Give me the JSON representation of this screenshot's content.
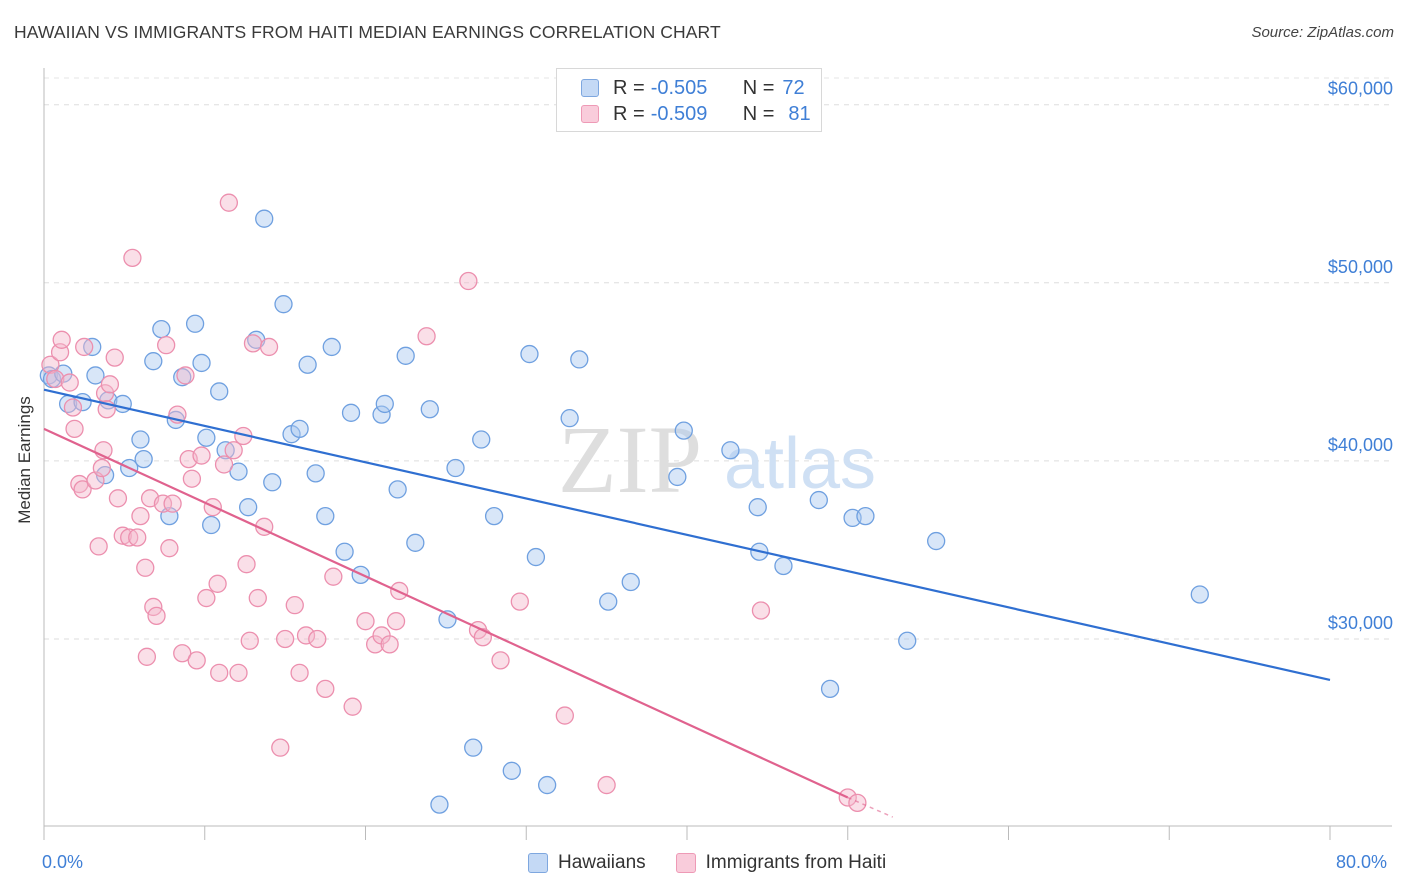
{
  "header": {
    "title": "HAWAIIAN VS IMMIGRANTS FROM HAITI MEDIAN EARNINGS CORRELATION CHART",
    "source": "Source: ZipAtlas.com"
  },
  "watermark": {
    "zip": "ZIP",
    "atlas": "atlas"
  },
  "legend": {
    "rows": [
      {
        "r_label": "R =",
        "r_value": "-0.505",
        "n_label": "N =",
        "n_value": "72",
        "color": "#a9c8f0"
      },
      {
        "r_label": "R =",
        "r_value": "-0.509",
        "n_label": "N =",
        "n_value": "81",
        "color": "#f5b8cb"
      }
    ]
  },
  "bottom_legend": {
    "items": [
      {
        "label": "Hawaiians",
        "color": "#a9c8f0"
      },
      {
        "label": "Immigrants from Haiti",
        "color": "#f5b8cb"
      }
    ]
  },
  "chart_data": {
    "type": "scatter",
    "title": "HAWAIIAN VS IMMIGRANTS FROM HAITI MEDIAN EARNINGS CORRELATION CHART",
    "xlabel": "",
    "ylabel": "Median Earnings",
    "xlim": [
      0,
      80
    ],
    "ylim": [
      19500,
      61500
    ],
    "x_tick_labels": [
      "0.0%",
      "80.0%"
    ],
    "y_ticks": [
      30000,
      40000,
      50000,
      60000
    ],
    "y_tick_labels": [
      "$30,000",
      "$40,000",
      "$50,000",
      "$60,000"
    ],
    "grid": true,
    "legend_position": "top-center",
    "series": [
      {
        "name": "Hawaiians",
        "color": "#6fa0e0",
        "fill": "#a9c8f0",
        "trend": {
          "x": [
            0,
            80
          ],
          "y": [
            44000,
            27700
          ],
          "color": "#2f6fd1"
        },
        "points": [
          [
            0.3,
            44800
          ],
          [
            0.5,
            44600
          ],
          [
            1.2,
            44900
          ],
          [
            1.5,
            43200
          ],
          [
            2.4,
            43300
          ],
          [
            3.0,
            46400
          ],
          [
            3.2,
            44800
          ],
          [
            3.8,
            39200
          ],
          [
            4.0,
            43400
          ],
          [
            4.9,
            43200
          ],
          [
            5.3,
            39600
          ],
          [
            6.0,
            41200
          ],
          [
            6.2,
            40100
          ],
          [
            6.8,
            45600
          ],
          [
            7.3,
            47400
          ],
          [
            7.8,
            36900
          ],
          [
            8.2,
            42300
          ],
          [
            8.6,
            44700
          ],
          [
            9.4,
            47700
          ],
          [
            9.8,
            45500
          ],
          [
            10.1,
            41300
          ],
          [
            10.4,
            36400
          ],
          [
            10.9,
            43900
          ],
          [
            11.3,
            40600
          ],
          [
            12.1,
            39400
          ],
          [
            12.7,
            37400
          ],
          [
            13.2,
            46800
          ],
          [
            13.7,
            53600
          ],
          [
            14.2,
            38800
          ],
          [
            14.9,
            48800
          ],
          [
            15.4,
            41500
          ],
          [
            15.9,
            41800
          ],
          [
            16.4,
            45400
          ],
          [
            16.9,
            39300
          ],
          [
            17.5,
            36900
          ],
          [
            17.9,
            46400
          ],
          [
            18.7,
            34900
          ],
          [
            19.1,
            42700
          ],
          [
            19.7,
            33600
          ],
          [
            21.0,
            42600
          ],
          [
            21.2,
            43200
          ],
          [
            22.0,
            38400
          ],
          [
            22.5,
            45900
          ],
          [
            23.1,
            35400
          ],
          [
            24.0,
            42900
          ],
          [
            24.6,
            20700
          ],
          [
            25.1,
            31100
          ],
          [
            25.6,
            39600
          ],
          [
            26.7,
            23900
          ],
          [
            27.2,
            41200
          ],
          [
            28.0,
            36900
          ],
          [
            29.1,
            22600
          ],
          [
            30.2,
            46000
          ],
          [
            30.6,
            34600
          ],
          [
            31.3,
            21800
          ],
          [
            32.7,
            42400
          ],
          [
            33.3,
            45700
          ],
          [
            35.1,
            32100
          ],
          [
            36.5,
            33200
          ],
          [
            39.4,
            39100
          ],
          [
            39.8,
            41700
          ],
          [
            42.7,
            40600
          ],
          [
            44.4,
            37400
          ],
          [
            44.5,
            34900
          ],
          [
            46.0,
            34100
          ],
          [
            48.2,
            37800
          ],
          [
            48.9,
            27200
          ],
          [
            50.3,
            36800
          ],
          [
            51.1,
            36900
          ],
          [
            53.7,
            29900
          ],
          [
            55.5,
            35500
          ],
          [
            71.9,
            32500
          ]
        ]
      },
      {
        "name": "Immigrants from Haiti",
        "color": "#ec8fae",
        "fill": "#f5b8cb",
        "trend": {
          "x": [
            0,
            50
          ],
          "y": [
            41800,
            21100
          ],
          "color": "#e0628e",
          "dashed_x": [
            50,
            52.8
          ],
          "dashed_y": [
            21100,
            20000
          ]
        },
        "points": [
          [
            0.4,
            45400
          ],
          [
            0.7,
            44600
          ],
          [
            1.0,
            46100
          ],
          [
            1.1,
            46800
          ],
          [
            1.6,
            44400
          ],
          [
            1.8,
            43000
          ],
          [
            1.9,
            41800
          ],
          [
            2.2,
            38700
          ],
          [
            2.4,
            38400
          ],
          [
            2.5,
            46400
          ],
          [
            3.2,
            38900
          ],
          [
            3.4,
            35200
          ],
          [
            3.6,
            39600
          ],
          [
            3.7,
            40600
          ],
          [
            3.8,
            43800
          ],
          [
            3.9,
            42900
          ],
          [
            4.1,
            44300
          ],
          [
            4.4,
            45800
          ],
          [
            4.6,
            37900
          ],
          [
            4.9,
            35800
          ],
          [
            5.3,
            35700
          ],
          [
            5.5,
            51400
          ],
          [
            5.8,
            35700
          ],
          [
            6.0,
            36900
          ],
          [
            6.3,
            34000
          ],
          [
            6.4,
            29000
          ],
          [
            6.6,
            37900
          ],
          [
            6.8,
            31800
          ],
          [
            7.0,
            31300
          ],
          [
            7.4,
            37600
          ],
          [
            7.6,
            46500
          ],
          [
            7.8,
            35100
          ],
          [
            8.0,
            37600
          ],
          [
            8.3,
            42600
          ],
          [
            8.6,
            29200
          ],
          [
            8.8,
            44800
          ],
          [
            9.0,
            40100
          ],
          [
            9.2,
            39000
          ],
          [
            9.5,
            28800
          ],
          [
            9.8,
            40300
          ],
          [
            10.1,
            32300
          ],
          [
            10.5,
            37400
          ],
          [
            10.8,
            33100
          ],
          [
            10.9,
            28100
          ],
          [
            11.2,
            39800
          ],
          [
            11.5,
            54500
          ],
          [
            11.8,
            40600
          ],
          [
            12.1,
            28100
          ],
          [
            12.4,
            41400
          ],
          [
            12.6,
            34200
          ],
          [
            12.8,
            29900
          ],
          [
            13.0,
            46600
          ],
          [
            13.3,
            32300
          ],
          [
            13.7,
            36300
          ],
          [
            14.0,
            46400
          ],
          [
            14.7,
            23900
          ],
          [
            15.0,
            30000
          ],
          [
            15.6,
            31900
          ],
          [
            15.9,
            28100
          ],
          [
            16.3,
            30200
          ],
          [
            17.0,
            30000
          ],
          [
            17.5,
            27200
          ],
          [
            18.0,
            33500
          ],
          [
            19.2,
            26200
          ],
          [
            20.0,
            31000
          ],
          [
            20.6,
            29700
          ],
          [
            21.0,
            30200
          ],
          [
            21.5,
            29700
          ],
          [
            21.9,
            31000
          ],
          [
            22.1,
            32700
          ],
          [
            23.8,
            47000
          ],
          [
            26.4,
            50100
          ],
          [
            27.0,
            30500
          ],
          [
            27.3,
            30100
          ],
          [
            28.4,
            28800
          ],
          [
            29.6,
            32100
          ],
          [
            32.4,
            25700
          ],
          [
            35.0,
            21800
          ],
          [
            44.6,
            31600
          ],
          [
            50.0,
            21100
          ],
          [
            50.6,
            20800
          ]
        ]
      }
    ]
  }
}
